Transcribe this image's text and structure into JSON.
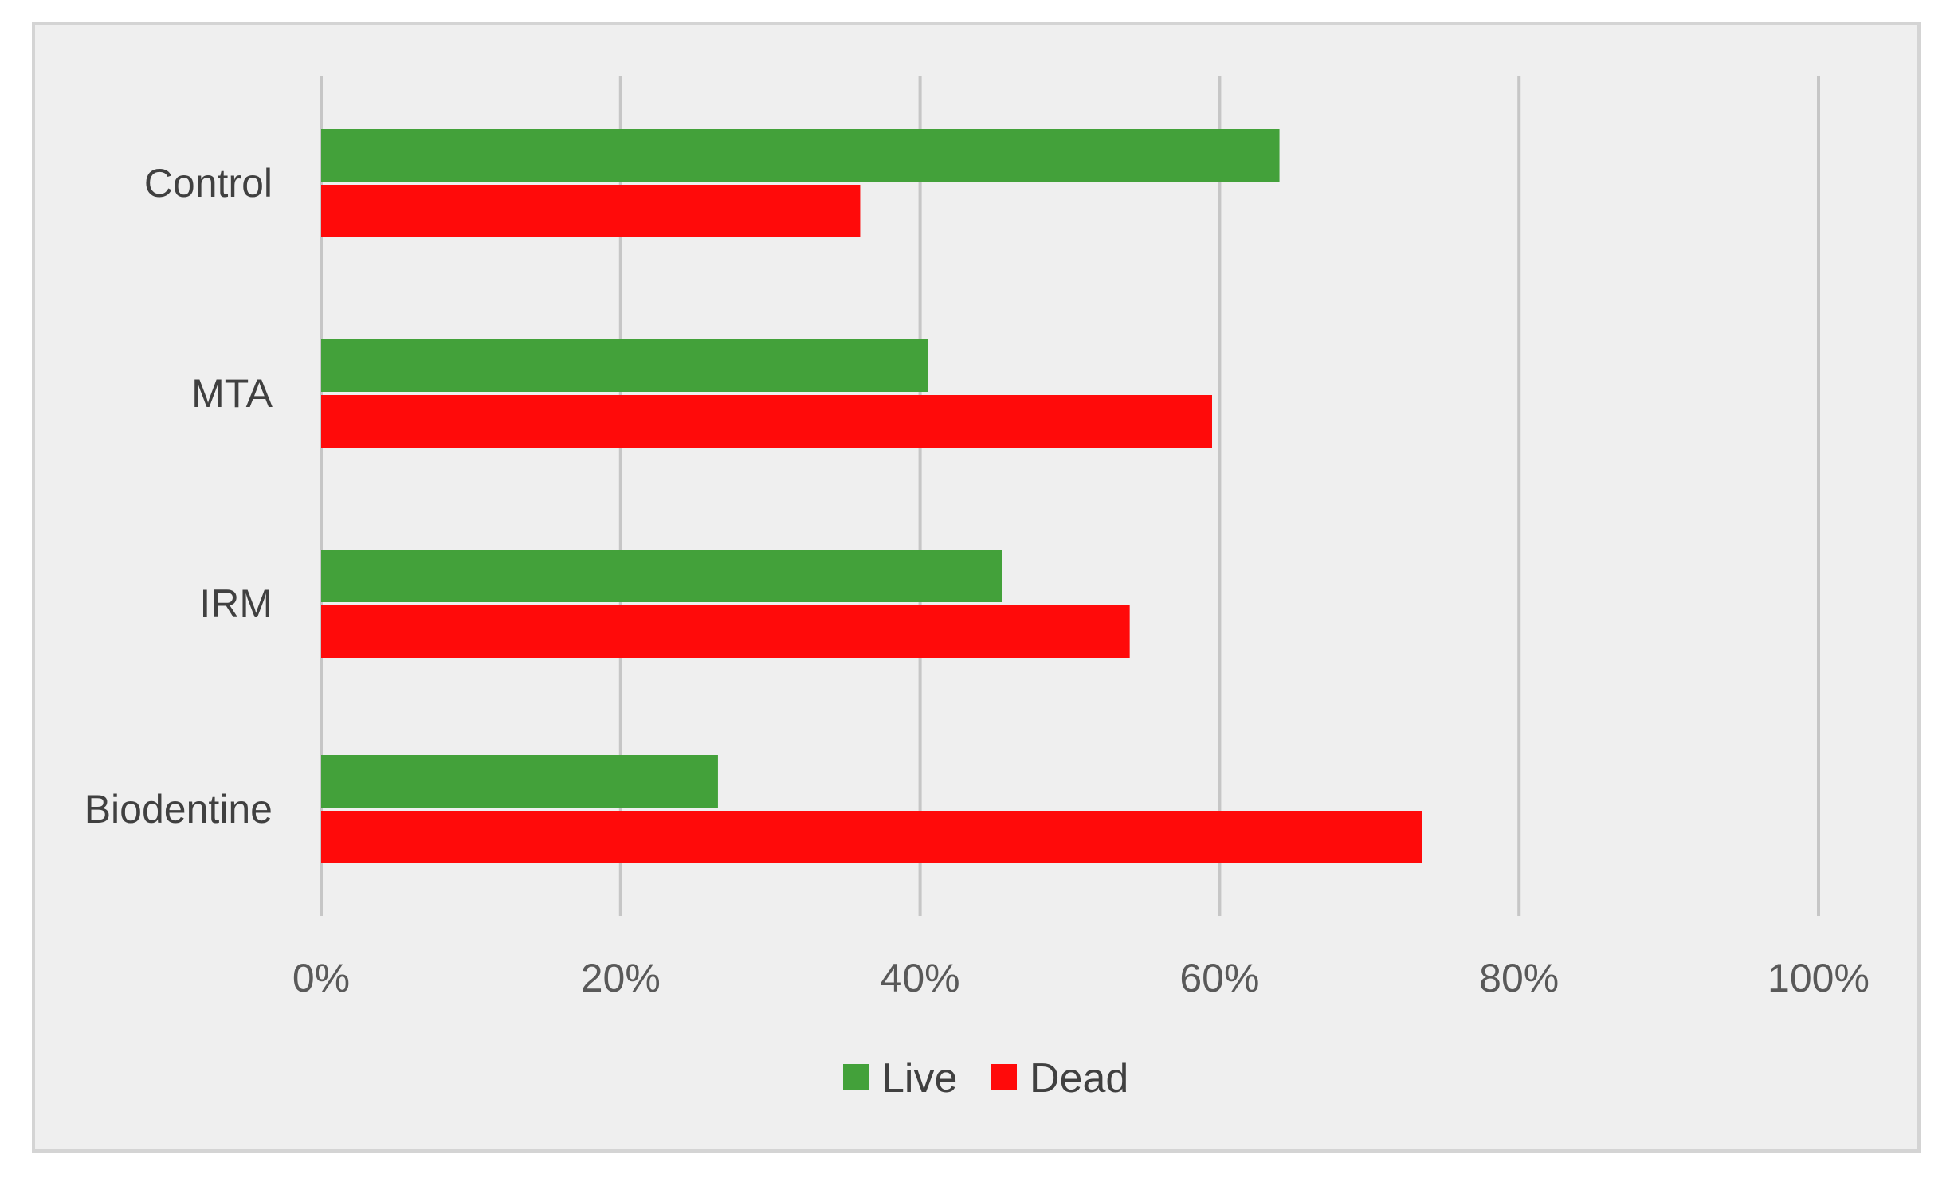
{
  "chart_data": {
    "type": "bar",
    "orientation": "horizontal",
    "categories": [
      "Control",
      "MTA",
      "IRM",
      "Biodentine"
    ],
    "series": [
      {
        "name": "Live",
        "color": "#43a13a",
        "values": [
          64,
          40.5,
          45.5,
          26.5
        ]
      },
      {
        "name": "Dead",
        "color": "#ff0a0a",
        "values": [
          36,
          59.5,
          54,
          73.5
        ]
      }
    ],
    "x_ticks": [
      "0%",
      "20%",
      "40%",
      "60%",
      "80%",
      "100%"
    ],
    "xlim": [
      0,
      100
    ],
    "title": "",
    "xlabel": "",
    "ylabel": "",
    "grid": "vertical",
    "legend_position": "bottom-center"
  }
}
